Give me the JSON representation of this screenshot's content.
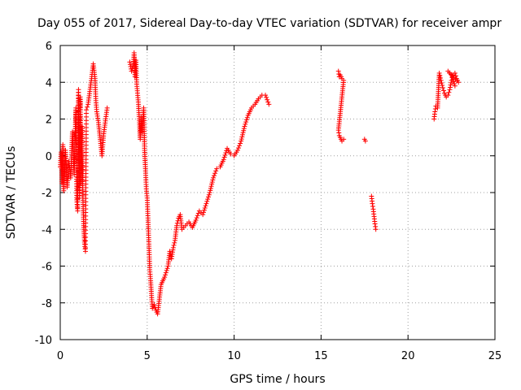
{
  "chart_data": {
    "type": "scatter",
    "title": "Day 055 of 2017, Sidereal Day-to-day VTEC variation (SDTVAR) for receiver ampr",
    "xlabel": "GPS time / hours",
    "ylabel": "SDTVAR / TECUs",
    "xlim": [
      0,
      25
    ],
    "ylim": [
      -10,
      6
    ],
    "xticks": [
      "0",
      "5",
      "10",
      "15",
      "20",
      "25"
    ],
    "yticks": [
      "-10",
      "-8",
      "-6",
      "-4",
      "-2",
      "0",
      "2",
      "4",
      "6"
    ],
    "grid": true,
    "marker": "+",
    "color": "#ff0000",
    "segments": [
      [
        [
          0.0,
          -0.6
        ],
        [
          0.05,
          0.2
        ],
        [
          0.1,
          -1.5
        ],
        [
          0.15,
          0.6
        ],
        [
          0.2,
          -1.9
        ],
        [
          0.3,
          0.3
        ],
        [
          0.4,
          -1.7
        ],
        [
          0.5,
          -0.3
        ],
        [
          0.6,
          -1.2
        ],
        [
          0.7,
          1.3
        ],
        [
          0.8,
          -1.0
        ],
        [
          0.9,
          2.6
        ],
        [
          0.95,
          -2.4
        ],
        [
          1.0,
          -3.0
        ],
        [
          1.05,
          3.6
        ],
        [
          1.1,
          -2.3
        ],
        [
          1.15,
          3.2
        ],
        [
          1.2,
          -1.5
        ],
        [
          1.25,
          1.6
        ],
        [
          1.3,
          -2.3
        ],
        [
          1.35,
          -3.8
        ],
        [
          1.4,
          -4.8
        ],
        [
          1.45,
          -5.2
        ],
        [
          1.5,
          2.5
        ],
        [
          1.6,
          2.8
        ],
        [
          1.7,
          3.5
        ],
        [
          1.8,
          4.2
        ],
        [
          1.9,
          5.0
        ],
        [
          2.0,
          4.2
        ],
        [
          2.05,
          3.0
        ],
        [
          2.1,
          2.4
        ],
        [
          2.2,
          1.8
        ],
        [
          2.3,
          0.9
        ],
        [
          2.4,
          0.0
        ],
        [
          2.5,
          1.2
        ],
        [
          2.6,
          1.9
        ],
        [
          2.7,
          2.6
        ]
      ],
      [
        [
          4.0,
          5.1
        ],
        [
          4.1,
          4.6
        ],
        [
          4.2,
          4.9
        ],
        [
          4.25,
          5.6
        ],
        [
          4.3,
          4.3
        ],
        [
          4.35,
          5.2
        ],
        [
          4.4,
          3.9
        ],
        [
          4.5,
          2.8
        ],
        [
          4.55,
          1.9
        ],
        [
          4.6,
          0.9
        ],
        [
          4.65,
          2.1
        ],
        [
          4.7,
          1.3
        ],
        [
          4.8,
          2.6
        ],
        [
          4.85,
          0.3
        ],
        [
          4.9,
          -0.7
        ],
        [
          4.95,
          -1.8
        ],
        [
          5.0,
          -2.3
        ],
        [
          5.05,
          -3.5
        ],
        [
          5.1,
          -4.8
        ],
        [
          5.15,
          -6.2
        ],
        [
          5.2,
          -6.8
        ],
        [
          5.25,
          -7.6
        ],
        [
          5.3,
          -8.3
        ],
        [
          5.4,
          -8.1
        ],
        [
          5.5,
          -8.4
        ],
        [
          5.6,
          -8.6
        ],
        [
          5.7,
          -7.8
        ],
        [
          5.8,
          -7.0
        ],
        [
          6.0,
          -6.6
        ],
        [
          6.2,
          -6.0
        ],
        [
          6.3,
          -5.2
        ],
        [
          6.4,
          -5.6
        ],
        [
          6.5,
          -5.0
        ],
        [
          6.6,
          -4.6
        ],
        [
          6.7,
          -3.8
        ],
        [
          6.8,
          -3.4
        ],
        [
          6.9,
          -3.2
        ],
        [
          7.0,
          -4.0
        ],
        [
          7.2,
          -3.8
        ],
        [
          7.4,
          -3.6
        ],
        [
          7.6,
          -3.9
        ],
        [
          7.8,
          -3.5
        ],
        [
          8.0,
          -3.0
        ],
        [
          8.2,
          -3.2
        ],
        [
          8.4,
          -2.6
        ],
        [
          8.6,
          -2.0
        ],
        [
          8.8,
          -1.2
        ],
        [
          9.0,
          -0.7
        ],
        [
          9.2,
          -0.6
        ],
        [
          9.4,
          -0.2
        ],
        [
          9.6,
          0.4
        ],
        [
          9.8,
          0.1
        ],
        [
          10.0,
          0.0
        ],
        [
          10.2,
          0.3
        ],
        [
          10.4,
          0.8
        ],
        [
          10.6,
          1.6
        ],
        [
          10.8,
          2.2
        ],
        [
          11.0,
          2.6
        ],
        [
          11.2,
          2.8
        ],
        [
          11.4,
          3.1
        ],
        [
          11.6,
          3.3
        ],
        [
          11.8,
          3.3
        ],
        [
          12.0,
          2.8
        ]
      ],
      [
        [
          16.0,
          4.6
        ],
        [
          16.05,
          4.3
        ],
        [
          16.1,
          4.4
        ],
        [
          16.2,
          4.2
        ],
        [
          16.3,
          4.1
        ],
        [
          16.0,
          1.4
        ],
        [
          16.05,
          1.1
        ],
        [
          16.1,
          1.0
        ],
        [
          16.2,
          0.8
        ],
        [
          16.3,
          0.9
        ]
      ],
      [
        [
          17.5,
          0.9
        ],
        [
          17.55,
          0.8
        ]
      ],
      [
        [
          17.9,
          -2.2
        ],
        [
          17.95,
          -2.6
        ],
        [
          18.0,
          -2.9
        ],
        [
          18.05,
          -3.3
        ],
        [
          18.1,
          -3.7
        ],
        [
          18.15,
          -4.0
        ]
      ],
      [
        [
          21.5,
          2.0
        ],
        [
          21.55,
          2.4
        ],
        [
          21.6,
          2.7
        ],
        [
          21.7,
          2.6
        ],
        [
          21.8,
          4.5
        ],
        [
          21.9,
          4.1
        ],
        [
          22.0,
          3.7
        ],
        [
          22.1,
          3.4
        ],
        [
          22.2,
          3.2
        ],
        [
          22.3,
          3.3
        ],
        [
          22.4,
          3.6
        ],
        [
          22.5,
          4.1
        ],
        [
          22.6,
          4.4
        ],
        [
          22.7,
          4.5
        ],
        [
          22.8,
          4.2
        ],
        [
          22.9,
          4.0
        ],
        [
          22.3,
          4.6
        ],
        [
          22.5,
          4.4
        ],
        [
          22.7,
          3.8
        ]
      ]
    ]
  }
}
